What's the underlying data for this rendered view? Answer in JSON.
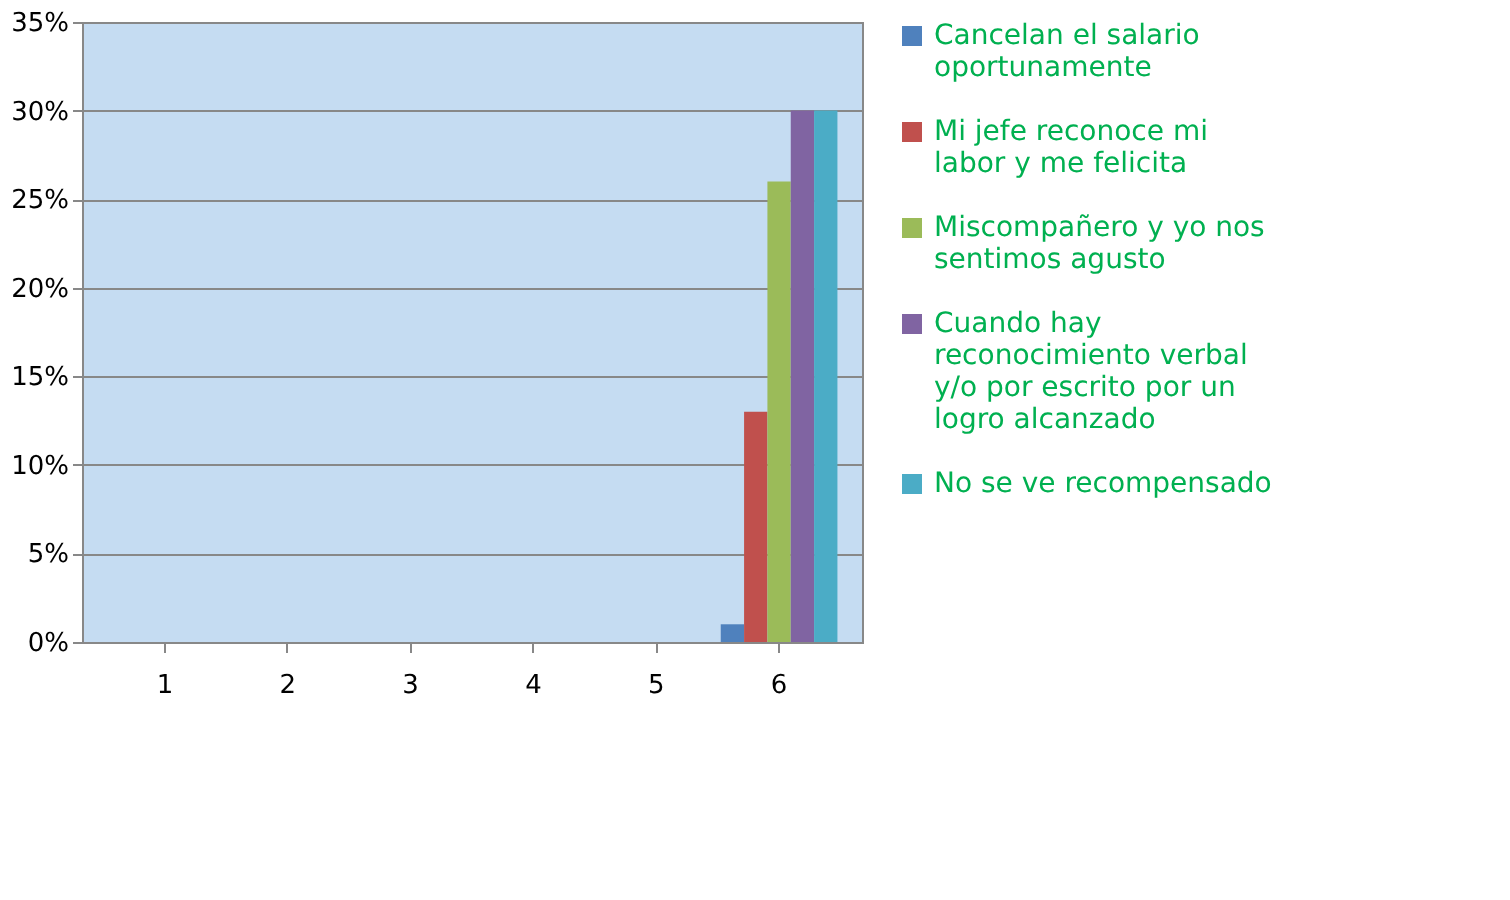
{
  "chart_data": {
    "type": "bar",
    "categories": [
      "1",
      "2",
      "3",
      "4",
      "5",
      "6"
    ],
    "series": [
      {
        "name": "Cancelan el salario oportunamente",
        "color": "#4f81bd",
        "values": [
          0,
          0,
          0,
          0,
          0,
          1
        ]
      },
      {
        "name": "Mi jefe reconoce mi labor y me felicita",
        "color": "#c0504d",
        "values": [
          0,
          0,
          0,
          0,
          0,
          13
        ]
      },
      {
        "name": "Miscompañero y yo nos sentimos agusto",
        "color": "#9bbb59",
        "values": [
          0,
          0,
          0,
          0,
          0,
          26
        ]
      },
      {
        "name": "Cuando hay reconocimiento verbal y/o por escrito por un logro alcanzado",
        "color": "#8064a2",
        "values": [
          0,
          0,
          0,
          0,
          0,
          30
        ]
      },
      {
        "name": "No se ve recompensado",
        "color": "#4bacc6",
        "values": [
          0,
          0,
          0,
          0,
          0,
          30
        ]
      }
    ],
    "ylim": [
      0,
      35
    ],
    "yticks": [
      {
        "value": 0,
        "label": "0%"
      },
      {
        "value": 5,
        "label": "5%"
      },
      {
        "value": 10,
        "label": "10%"
      },
      {
        "value": 15,
        "label": "15%"
      },
      {
        "value": 20,
        "label": "20%"
      },
      {
        "value": 25,
        "label": "25%"
      },
      {
        "value": 30,
        "label": "30%"
      },
      {
        "value": 35,
        "label": "35%"
      }
    ],
    "grid": "y",
    "legend": "right"
  }
}
